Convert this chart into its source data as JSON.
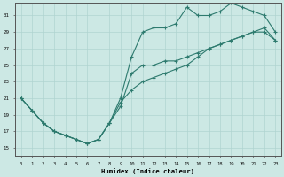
{
  "xlabel": "Humidex (Indice chaleur)",
  "bg_color": "#cce8e4",
  "line_color": "#2d7a6e",
  "grid_color": "#b0d4d0",
  "xlim": [
    -0.5,
    23.5
  ],
  "ylim": [
    14,
    32.5
  ],
  "xticks": [
    0,
    1,
    2,
    3,
    4,
    5,
    6,
    7,
    8,
    9,
    10,
    11,
    12,
    13,
    14,
    15,
    16,
    17,
    18,
    19,
    20,
    21,
    22,
    23
  ],
  "yticks": [
    15,
    17,
    19,
    21,
    23,
    25,
    27,
    29,
    31
  ],
  "line1_x": [
    0,
    1,
    2,
    3,
    4,
    5,
    6,
    7,
    8,
    9,
    10,
    11,
    12,
    13,
    14,
    15,
    16,
    17,
    18,
    19,
    20,
    21,
    22,
    23
  ],
  "line1_y": [
    21,
    19.5,
    18,
    17,
    16.5,
    16,
    15.5,
    16,
    18,
    20,
    24,
    25,
    25,
    25.5,
    25.5,
    26,
    26.5,
    27,
    27.5,
    28,
    28.5,
    29,
    29,
    28
  ],
  "line2_x": [
    0,
    1,
    2,
    3,
    4,
    5,
    6,
    7,
    8,
    9,
    10,
    11,
    12,
    13,
    14,
    15,
    16,
    17,
    18,
    19,
    20,
    21,
    22,
    23
  ],
  "line2_y": [
    21,
    19.5,
    18,
    17,
    16.5,
    16,
    15.5,
    16,
    18,
    21,
    26,
    29,
    29.5,
    29.5,
    30,
    32,
    31,
    31,
    31.5,
    32.5,
    32,
    31.5,
    31,
    29
  ],
  "line3_x": [
    0,
    1,
    2,
    3,
    4,
    5,
    6,
    7,
    8,
    9,
    10,
    11,
    12,
    13,
    14,
    15,
    16,
    17,
    18,
    19,
    20,
    21,
    22,
    23
  ],
  "line3_y": [
    21,
    19.5,
    18,
    17,
    16.5,
    16,
    15.5,
    16,
    18,
    20.5,
    22,
    23,
    23.5,
    24,
    24.5,
    25,
    26,
    27,
    27.5,
    28,
    28.5,
    29,
    29.5,
    28
  ]
}
